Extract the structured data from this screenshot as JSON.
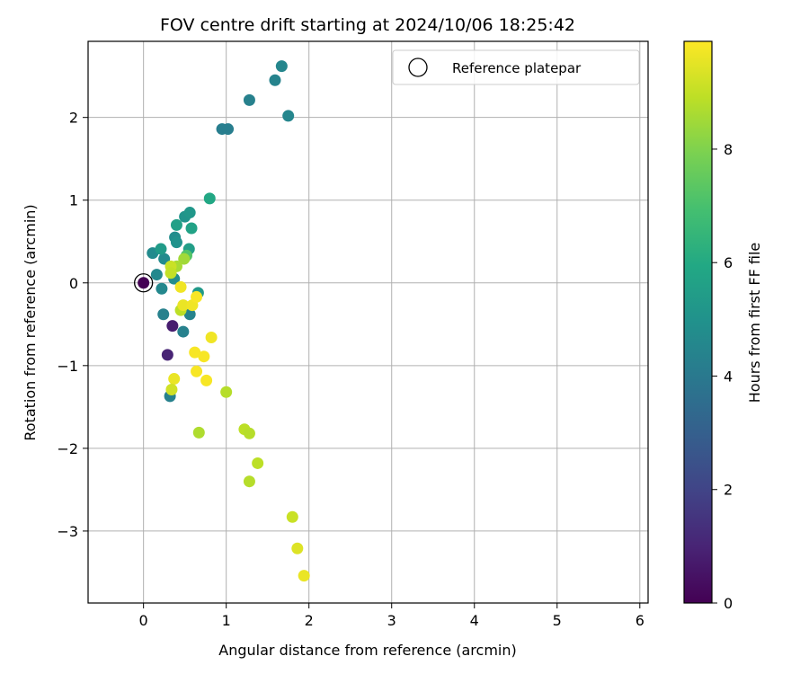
{
  "chart_data": {
    "type": "scatter",
    "title": "FOV centre drift starting at 2024/10/06 18:25:42",
    "xlabel": "Angular distance from reference (arcmin)",
    "ylabel": "Rotation from reference (arcmin)",
    "xlim": [
      -0.67,
      6.1
    ],
    "ylim": [
      -3.87,
      2.92
    ],
    "xticks": [
      0,
      1,
      2,
      3,
      4,
      5,
      6
    ],
    "yticks": [
      -3,
      -2,
      -1,
      0,
      1,
      2
    ],
    "xtick_labels": [
      "0",
      "1",
      "2",
      "3",
      "4",
      "5",
      "6"
    ],
    "ytick_labels": [
      "−3",
      "−2",
      "−1",
      "0",
      "1",
      "2"
    ],
    "grid": true,
    "legend": {
      "placement": "top-right",
      "entries": [
        "Reference platepar"
      ]
    },
    "reference_point": {
      "x": 0.0,
      "y": 0.0
    },
    "colorbar": {
      "label": "Hours from first FF file",
      "colormap": "viridis",
      "range": [
        0,
        9.9
      ],
      "ticks": [
        0,
        2,
        4,
        6,
        8
      ],
      "tick_labels": [
        "0",
        "2",
        "4",
        "6",
        "8"
      ]
    },
    "points": [
      {
        "x": 0.0,
        "y": 0.0,
        "c": 0.0
      },
      {
        "x": 0.35,
        "y": -0.52,
        "c": 0.8
      },
      {
        "x": 0.29,
        "y": -0.87,
        "c": 1.0
      },
      {
        "x": 0.32,
        "y": -1.37,
        "c": 4.3
      },
      {
        "x": 0.24,
        "y": -0.38,
        "c": 4.3
      },
      {
        "x": 0.48,
        "y": -0.59,
        "c": 4.3
      },
      {
        "x": 0.56,
        "y": -0.38,
        "c": 4.4
      },
      {
        "x": 0.22,
        "y": -0.07,
        "c": 4.6
      },
      {
        "x": 0.16,
        "y": 0.1,
        "c": 4.6
      },
      {
        "x": 0.11,
        "y": 0.36,
        "c": 4.7
      },
      {
        "x": 0.25,
        "y": 0.29,
        "c": 4.7
      },
      {
        "x": 0.37,
        "y": 0.05,
        "c": 4.8
      },
      {
        "x": 0.38,
        "y": 0.55,
        "c": 4.8
      },
      {
        "x": 0.4,
        "y": 0.49,
        "c": 5.0
      },
      {
        "x": 0.5,
        "y": 0.8,
        "c": 5.1
      },
      {
        "x": 0.56,
        "y": 0.85,
        "c": 5.2
      },
      {
        "x": 0.66,
        "y": -0.12,
        "c": 5.3
      },
      {
        "x": 0.21,
        "y": 0.41,
        "c": 5.4
      },
      {
        "x": 0.55,
        "y": 0.41,
        "c": 5.5
      },
      {
        "x": 0.4,
        "y": 0.7,
        "c": 5.6
      },
      {
        "x": 0.58,
        "y": 0.66,
        "c": 5.7
      },
      {
        "x": 0.8,
        "y": 1.02,
        "c": 5.9
      },
      {
        "x": 0.95,
        "y": 1.86,
        "c": 4.2
      },
      {
        "x": 1.02,
        "y": 1.86,
        "c": 4.2
      },
      {
        "x": 1.28,
        "y": 2.21,
        "c": 4.3
      },
      {
        "x": 1.59,
        "y": 2.45,
        "c": 4.4
      },
      {
        "x": 1.67,
        "y": 2.62,
        "c": 4.5
      },
      {
        "x": 1.75,
        "y": 2.02,
        "c": 4.5
      },
      {
        "x": 0.52,
        "y": 0.33,
        "c": 7.2
      },
      {
        "x": 0.49,
        "y": 0.29,
        "c": 8.5
      },
      {
        "x": 0.4,
        "y": 0.2,
        "c": 8.6
      },
      {
        "x": 0.33,
        "y": 0.2,
        "c": 9.1
      },
      {
        "x": 0.33,
        "y": 0.12,
        "c": 9.0
      },
      {
        "x": 0.45,
        "y": -0.05,
        "c": 9.7
      },
      {
        "x": 0.45,
        "y": -0.33,
        "c": 8.9
      },
      {
        "x": 0.48,
        "y": -0.27,
        "c": 9.6
      },
      {
        "x": 0.59,
        "y": -0.27,
        "c": 9.7
      },
      {
        "x": 0.64,
        "y": -0.17,
        "c": 9.8
      },
      {
        "x": 0.82,
        "y": -0.66,
        "c": 9.7
      },
      {
        "x": 0.62,
        "y": -0.84,
        "c": 9.8
      },
      {
        "x": 0.73,
        "y": -0.89,
        "c": 9.8
      },
      {
        "x": 0.64,
        "y": -1.07,
        "c": 9.8
      },
      {
        "x": 0.76,
        "y": -1.18,
        "c": 9.8
      },
      {
        "x": 0.37,
        "y": -1.16,
        "c": 9.6
      },
      {
        "x": 0.34,
        "y": -1.29,
        "c": 9.2
      },
      {
        "x": 0.67,
        "y": -1.81,
        "c": 8.7
      },
      {
        "x": 1.0,
        "y": -1.32,
        "c": 8.8
      },
      {
        "x": 1.22,
        "y": -1.77,
        "c": 8.9
      },
      {
        "x": 1.28,
        "y": -1.82,
        "c": 8.8
      },
      {
        "x": 1.38,
        "y": -2.18,
        "c": 8.9
      },
      {
        "x": 1.28,
        "y": -2.4,
        "c": 8.8
      },
      {
        "x": 1.8,
        "y": -2.83,
        "c": 9.1
      },
      {
        "x": 1.86,
        "y": -3.21,
        "c": 9.4
      },
      {
        "x": 1.94,
        "y": -3.54,
        "c": 9.6
      }
    ]
  }
}
